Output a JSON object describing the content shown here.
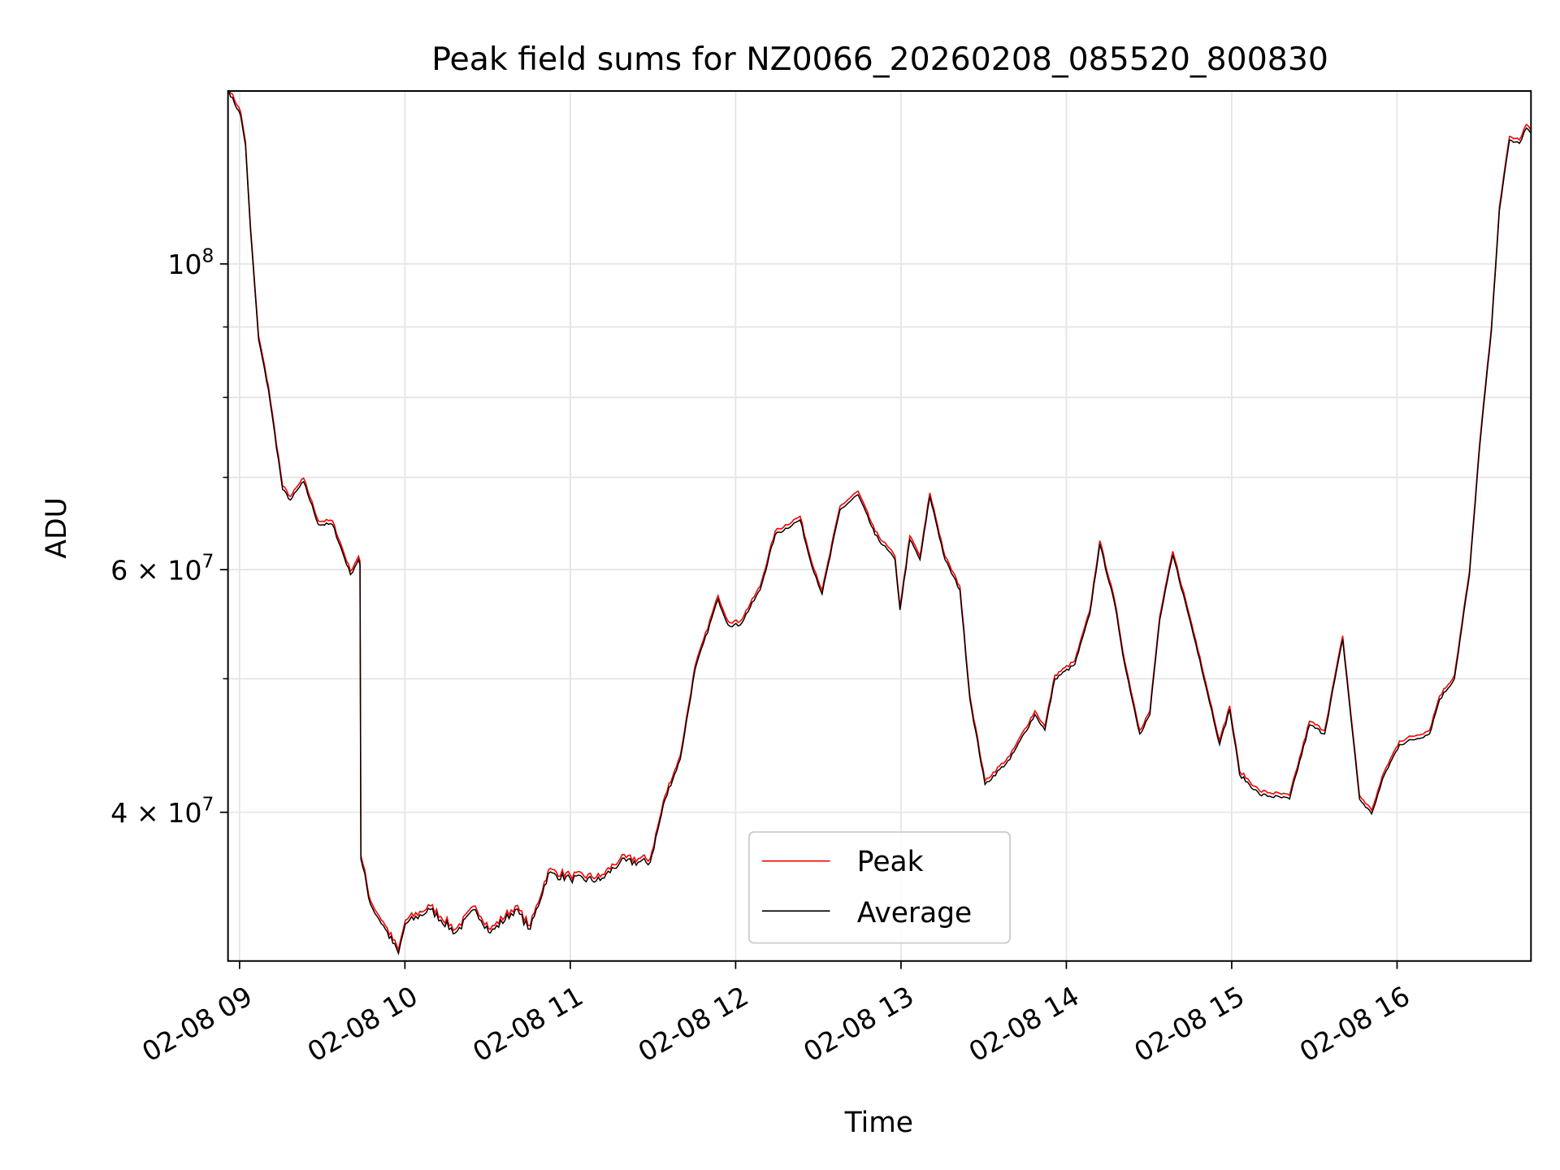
{
  "chart_data": {
    "type": "line",
    "title": "Peak field sums for NZ0066_20260208_085520_800830",
    "xlabel": "Time",
    "ylabel": "ADU",
    "yscale": "log",
    "xlim_hours": [
      8.93,
      16.81
    ],
    "ylim": [
      31200000,
      133500000
    ],
    "grid": true,
    "legend_placement": "lower-center",
    "x_ticks": [
      {
        "hour": 9,
        "label": "02-08 09"
      },
      {
        "hour": 10,
        "label": "02-08 10"
      },
      {
        "hour": 11,
        "label": "02-08 11"
      },
      {
        "hour": 12,
        "label": "02-08 12"
      },
      {
        "hour": 13,
        "label": "02-08 13"
      },
      {
        "hour": 14,
        "label": "02-08 14"
      },
      {
        "hour": 15,
        "label": "02-08 15"
      },
      {
        "hour": 16,
        "label": "02-08 16"
      }
    ],
    "y_major_ticks": [
      {
        "value": 100000000,
        "mantissa": "",
        "base": "10",
        "exp": "8"
      },
      {
        "value": 60000000,
        "mantissa": "6 × ",
        "base": "10",
        "exp": "7"
      },
      {
        "value": 40000000,
        "mantissa": "4 × ",
        "base": "10",
        "exp": "7"
      }
    ],
    "y_minor_ticks": [
      50000000,
      70000000,
      80000000,
      90000000
    ],
    "series": [
      {
        "name": "Peak",
        "color": "#ff0000",
        "ratio_to_average": 1.006
      },
      {
        "name": "Average",
        "color": "#000000"
      }
    ],
    "time_hours": [
      8.934,
      9.006,
      9.036,
      9.066,
      9.115,
      9.175,
      9.26,
      9.308,
      9.387,
      9.477,
      9.562,
      9.671,
      9.719,
      9.728,
      9.734,
      9.792,
      9.882,
      9.961,
      10.003,
      10.154,
      10.305,
      10.426,
      10.517,
      10.668,
      10.758,
      10.867,
      11.0,
      11.181,
      11.302,
      11.483,
      11.574,
      11.665,
      11.755,
      11.894,
      11.955,
      12.027,
      12.148,
      12.239,
      12.39,
      12.45,
      12.523,
      12.631,
      12.74,
      12.843,
      12.964,
      12.994,
      13.054,
      13.115,
      13.175,
      13.266,
      13.356,
      13.417,
      13.508,
      13.659,
      13.81,
      13.87,
      13.931,
      14.051,
      14.142,
      14.202,
      14.293,
      14.353,
      14.444,
      14.505,
      14.565,
      14.644,
      14.746,
      14.807,
      14.927,
      14.988,
      15.048,
      15.169,
      15.35,
      15.471,
      15.562,
      15.671,
      15.773,
      15.846,
      15.924,
      16.015,
      16.196,
      16.257,
      16.347,
      16.438,
      16.498,
      16.571,
      16.619,
      16.68,
      16.74,
      16.782,
      16.807
    ],
    "average_values": [
      133500000,
      128200000,
      121900000,
      105800000,
      88100000,
      81000000,
      68600000,
      67400000,
      69500000,
      64700000,
      64700000,
      59500000,
      61000000,
      60500000,
      37000000,
      34300000,
      32900000,
      31600000,
      33200000,
      34000000,
      32700000,
      34000000,
      32700000,
      34000000,
      32900000,
      36100000,
      35800000,
      35700000,
      36800000,
      36800000,
      40900000,
      43700000,
      50800000,
      57100000,
      54700000,
      54700000,
      58000000,
      63600000,
      65200000,
      61000000,
      57600000,
      66300000,
      68000000,
      63600000,
      61000000,
      56100000,
      63100000,
      61000000,
      67800000,
      61000000,
      58000000,
      48300000,
      41900000,
      43700000,
      47100000,
      45900000,
      50000000,
      51200000,
      55700000,
      62600000,
      56600000,
      51200000,
      45600000,
      47100000,
      55200000,
      61500000,
      55200000,
      51600000,
      44800000,
      47500000,
      42600000,
      41200000,
      40900000,
      46300000,
      45600000,
      53400000,
      40900000,
      39900000,
      42600000,
      44800000,
      45600000,
      48300000,
      50000000,
      59500000,
      73300000,
      89600000,
      109400000,
      123000000,
      122300000,
      125500000,
      124500000
    ]
  }
}
